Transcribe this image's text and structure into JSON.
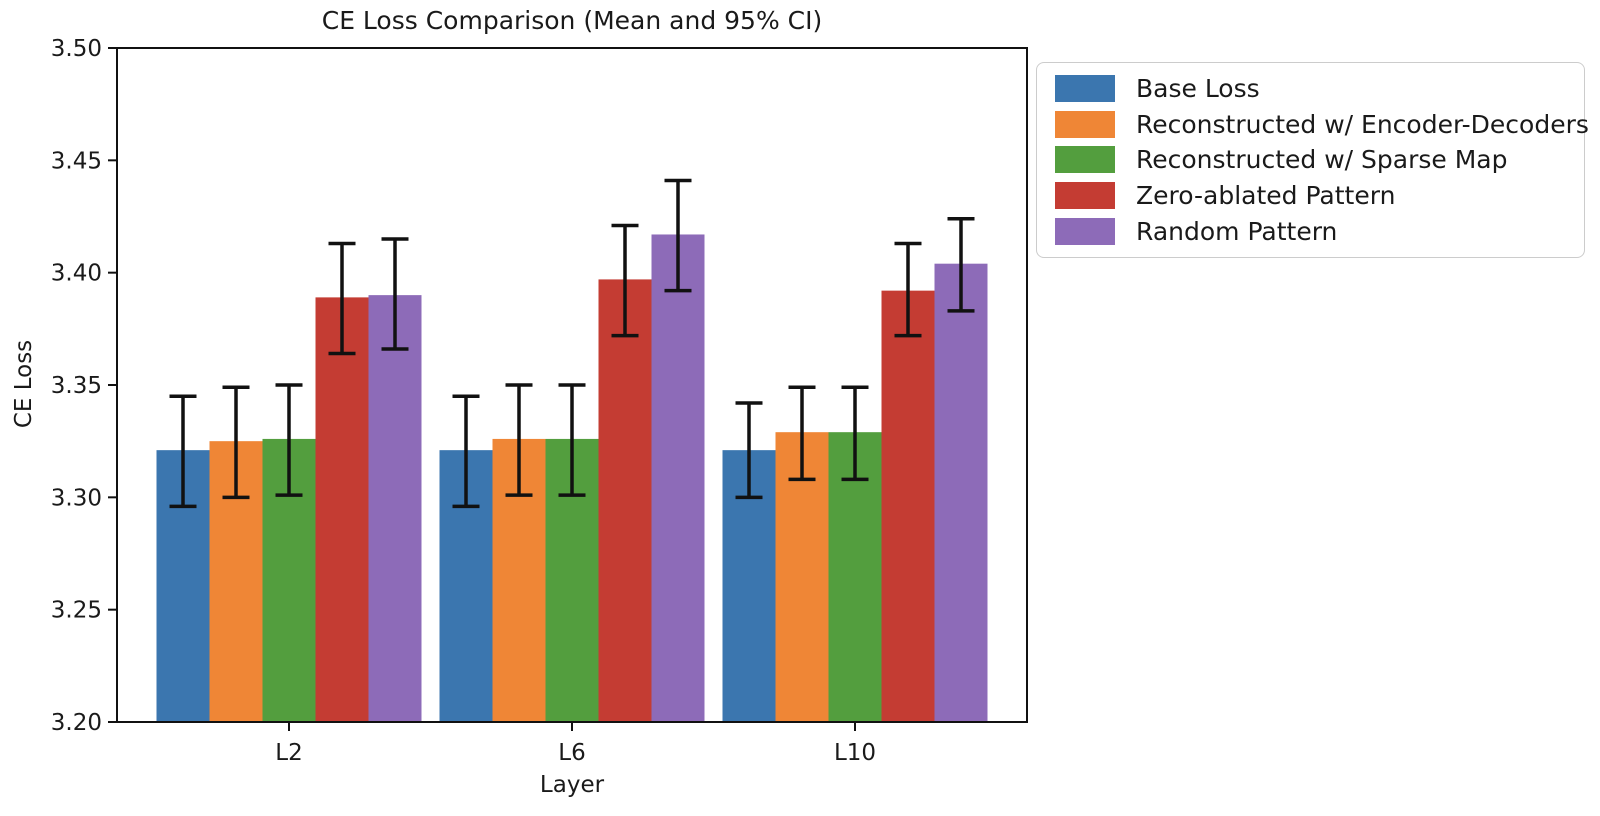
{
  "chart_data": {
    "type": "bar",
    "title": "CE Loss Comparison (Mean and 95% CI)",
    "xlabel": "Layer",
    "ylabel": "CE Loss",
    "categories": [
      "L2",
      "L6",
      "L10"
    ],
    "ylim": [
      3.2,
      3.5
    ],
    "yticks": [
      3.2,
      3.25,
      3.3,
      3.35,
      3.4,
      3.45,
      3.5
    ],
    "grid": false,
    "legend_position": "outside upper right",
    "error_bars": "95% CI",
    "axis_color": "#111111",
    "error_bar_color": "#111111",
    "series": [
      {
        "name": "Base Loss",
        "color": "#3B76AF",
        "values": [
          3.321,
          3.321,
          3.321
        ],
        "ci_low": [
          3.296,
          3.296,
          3.3
        ],
        "ci_high": [
          3.345,
          3.345,
          3.342
        ]
      },
      {
        "name": "Reconstructed w/ Encoder-Decoders",
        "color": "#EF8636",
        "values": [
          3.325,
          3.326,
          3.329
        ],
        "ci_low": [
          3.3,
          3.301,
          3.308
        ],
        "ci_high": [
          3.349,
          3.35,
          3.349
        ]
      },
      {
        "name": "Reconstructed w/ Sparse Map",
        "color": "#539E3E",
        "values": [
          3.326,
          3.326,
          3.329
        ],
        "ci_low": [
          3.301,
          3.301,
          3.308
        ],
        "ci_high": [
          3.35,
          3.35,
          3.349
        ]
      },
      {
        "name": "Zero-ablated Pattern",
        "color": "#C43C33",
        "values": [
          3.389,
          3.397,
          3.392
        ],
        "ci_low": [
          3.364,
          3.372,
          3.372
        ],
        "ci_high": [
          3.413,
          3.421,
          3.413
        ]
      },
      {
        "name": "Random Pattern",
        "color": "#8D6BB8",
        "values": [
          3.39,
          3.417,
          3.404
        ],
        "ci_low": [
          3.366,
          3.392,
          3.383
        ],
        "ci_high": [
          3.415,
          3.441,
          3.424
        ]
      }
    ]
  }
}
